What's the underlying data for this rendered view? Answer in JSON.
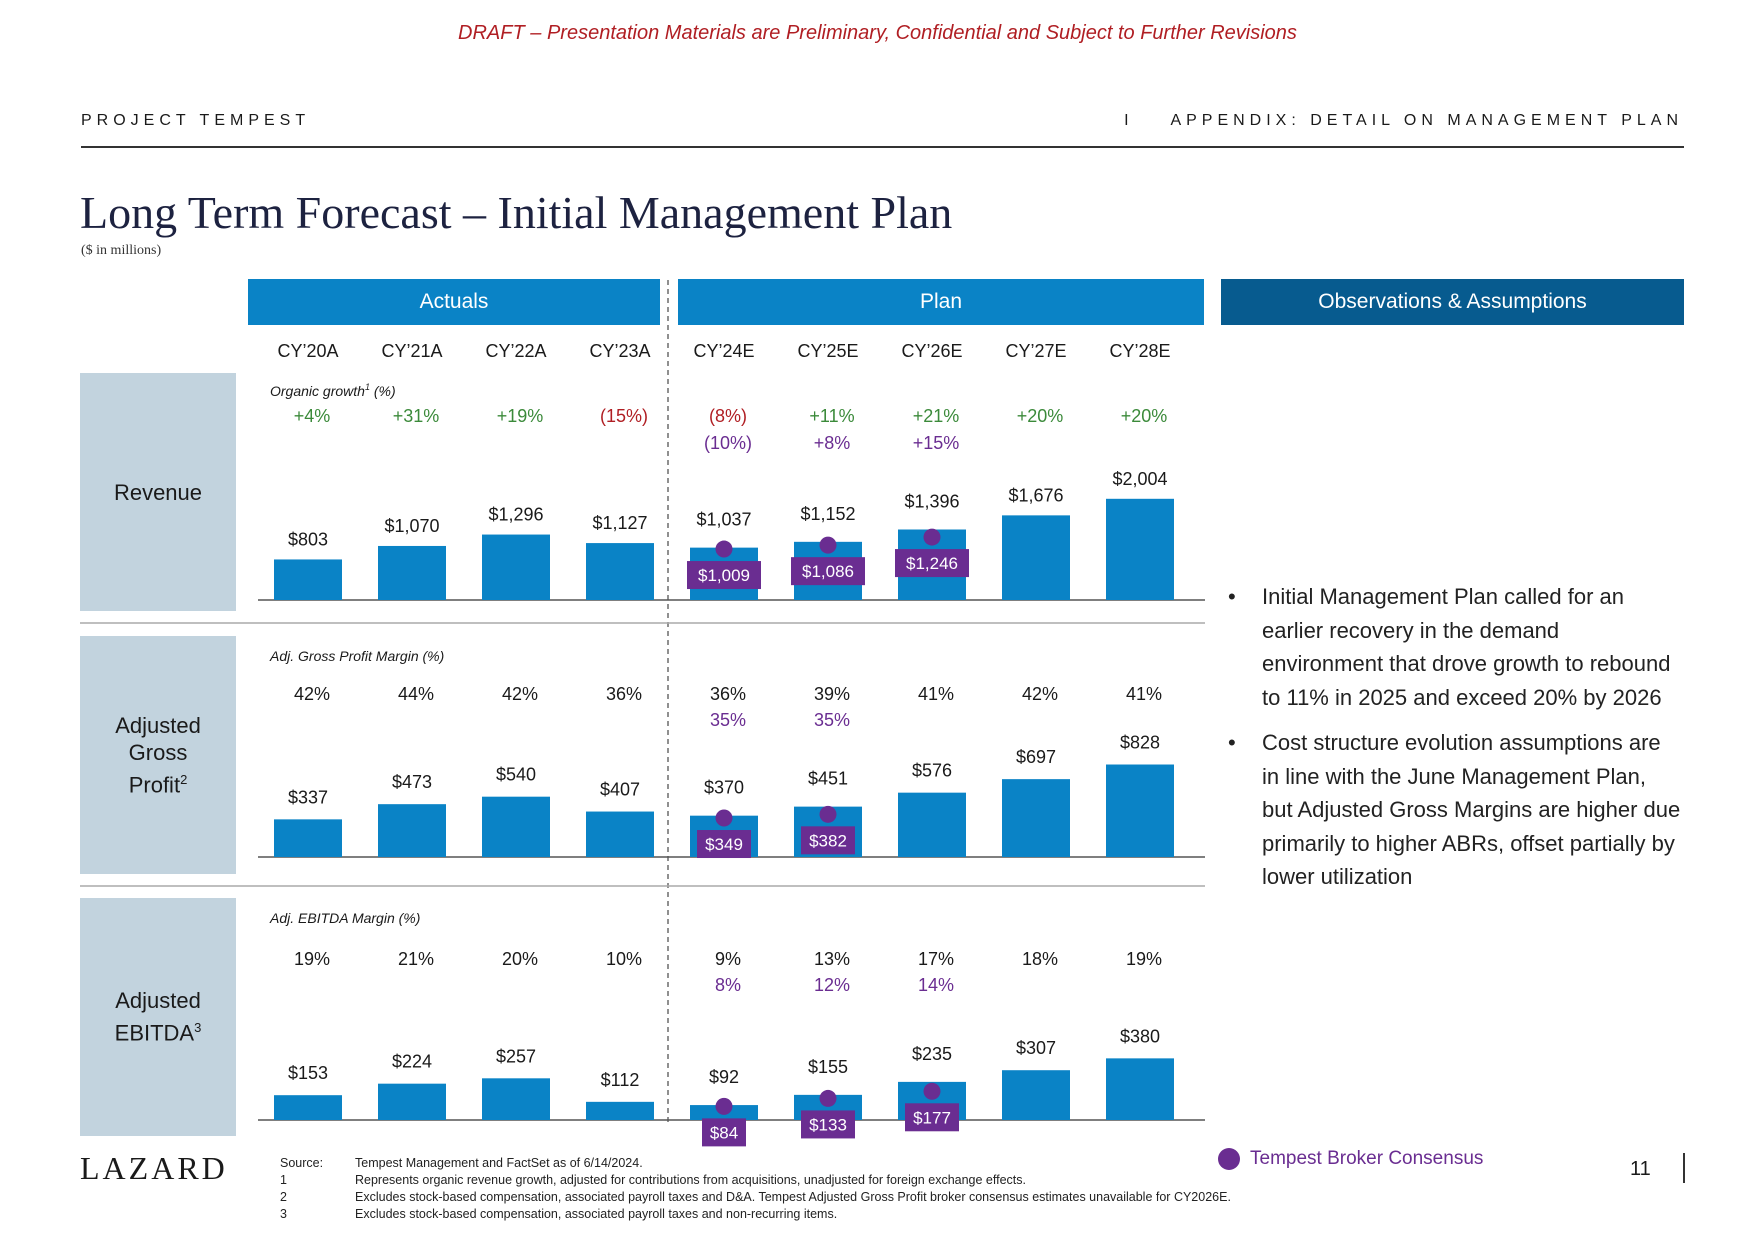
{
  "draft_banner": "DRAFT – Presentation Materials are Preliminary, Confidential and Subject to Further Revisions",
  "header": {
    "project": "PROJECT TEMPEST",
    "section": "I    APPENDIX: DETAIL ON MANAGEMENT PLAN"
  },
  "title": "Long Term Forecast – Initial Management Plan",
  "subtitle": "($ in millions)",
  "column_headers": {
    "actuals": "Actuals",
    "plan": "Plan",
    "observations": "Observations & Assumptions"
  },
  "row_labels": {
    "revenue": "Revenue",
    "gross_profit": "Adjusted Gross Profit",
    "gross_profit_sup": "2",
    "ebitda": "Adjusted EBITDA",
    "ebitda_sup": "3"
  },
  "colors": {
    "bar": "#0a83c6",
    "consensus": "#6a2d91",
    "positive": "#3b8a3a",
    "negative": "#b01e23",
    "row_label_bg": "#c2d3de",
    "obs_header": "#075b8f"
  },
  "observations": [
    "Initial Management Plan called for an earlier recovery in the demand environment that drove growth to rebound to 11% in 2025 and exceed 20% by 2026",
    "Cost structure evolution assumptions are in line with the June Management Plan, but Adjusted Gross Margins are higher due primarily to higher ABRs, offset partially by lower utilization"
  ],
  "legend": {
    "consensus": "Tempest Broker Consensus"
  },
  "footnotes": [
    {
      "key": "Source:",
      "text": "Tempest Management and FactSet as of 6/14/2024."
    },
    {
      "key": "1",
      "text": "Represents organic revenue growth, adjusted for contributions from acquisitions, unadjusted for foreign exchange effects."
    },
    {
      "key": "2",
      "text": "Excludes stock-based compensation, associated payroll taxes and D&A. Tempest Adjusted Gross Profit broker consensus estimates unavailable for CY2026E."
    },
    {
      "key": "3",
      "text": "Excludes stock-based compensation, associated payroll taxes and non-recurring items."
    }
  ],
  "logo": "LAZARD",
  "page_number": "11",
  "chart_data": {
    "type": "bar",
    "categories": [
      "CY’20A",
      "CY’21A",
      "CY’22A",
      "CY’23A",
      "CY’24E",
      "CY’25E",
      "CY’26E",
      "CY’27E",
      "CY’28E"
    ],
    "actuals_count": 4,
    "panels": [
      {
        "name": "Revenue",
        "metric_label": "Organic growth",
        "metric_sup": "1",
        "metric_suffix": " (%)",
        "metric": [
          "+4%",
          "+31%",
          "+19%",
          "(15%)",
          "(8%)",
          "+11%",
          "+21%",
          "+20%",
          "+20%"
        ],
        "consensus_metric": [
          null,
          null,
          null,
          null,
          "(10%)",
          "+8%",
          "+15%",
          null,
          null
        ],
        "values": [
          803,
          1070,
          1296,
          1127,
          1037,
          1152,
          1396,
          1676,
          2004
        ],
        "labels": [
          "$803",
          "$1,070",
          "$1,296",
          "$1,127",
          "$1,037",
          "$1,152",
          "$1,396",
          "$1,676",
          "$2,004"
        ],
        "consensus": [
          null,
          null,
          null,
          null,
          1009,
          1086,
          1246,
          null,
          null
        ],
        "consensus_labels": [
          null,
          null,
          null,
          null,
          "$1,009",
          "$1,086",
          "$1,246",
          null,
          null
        ]
      },
      {
        "name": "Adjusted Gross Profit",
        "metric_label": "Adj. Gross Profit Margin (%)",
        "metric_sup": "",
        "metric_suffix": "",
        "metric": [
          "42%",
          "44%",
          "42%",
          "36%",
          "36%",
          "39%",
          "41%",
          "42%",
          "41%"
        ],
        "consensus_metric": [
          null,
          null,
          null,
          null,
          "35%",
          "35%",
          null,
          null,
          null
        ],
        "values": [
          337,
          473,
          540,
          407,
          370,
          451,
          576,
          697,
          828
        ],
        "labels": [
          "$337",
          "$473",
          "$540",
          "$407",
          "$370",
          "$451",
          "$576",
          "$697",
          "$828"
        ],
        "consensus": [
          null,
          null,
          null,
          null,
          349,
          382,
          null,
          null,
          null
        ],
        "consensus_labels": [
          null,
          null,
          null,
          null,
          "$349",
          "$382",
          null,
          null,
          null
        ]
      },
      {
        "name": "Adjusted EBITDA",
        "metric_label": "Adj. EBITDA Margin (%)",
        "metric_sup": "",
        "metric_suffix": "",
        "metric": [
          "19%",
          "21%",
          "20%",
          "10%",
          "9%",
          "13%",
          "17%",
          "18%",
          "19%"
        ],
        "consensus_metric": [
          null,
          null,
          null,
          null,
          "8%",
          "12%",
          "14%",
          null,
          null
        ],
        "values": [
          153,
          224,
          257,
          112,
          92,
          155,
          235,
          307,
          380
        ],
        "labels": [
          "$153",
          "$224",
          "$257",
          "$112",
          "$92",
          "$155",
          "$235",
          "$307",
          "$380"
        ],
        "consensus": [
          null,
          null,
          null,
          null,
          84,
          133,
          177,
          null,
          null
        ],
        "consensus_labels": [
          null,
          null,
          null,
          null,
          "$84",
          "$133",
          "$177",
          null,
          null
        ]
      }
    ]
  }
}
